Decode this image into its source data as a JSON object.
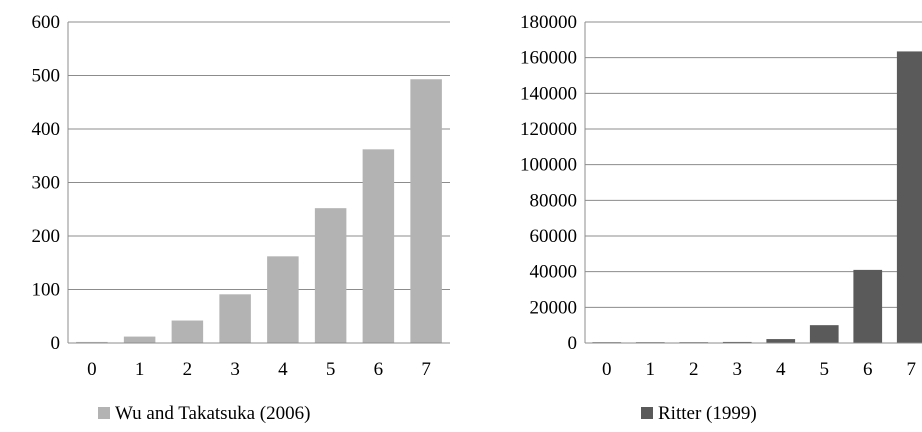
{
  "chart_data": [
    {
      "type": "bar",
      "categories": [
        "0",
        "1",
        "2",
        "3",
        "4",
        "5",
        "6",
        "7"
      ],
      "series": [
        {
          "name": "Wu and Takatsuka (2006)",
          "color": "#b3b3b3",
          "values": [
            2,
            12,
            42,
            91,
            162,
            252,
            362,
            493
          ]
        }
      ],
      "ylim": [
        0,
        600
      ],
      "yticks": [
        0,
        100,
        200,
        300,
        400,
        500,
        600
      ],
      "grid": true,
      "legend_position": "bottom-center"
    },
    {
      "type": "bar",
      "categories": [
        "0",
        "1",
        "2",
        "3",
        "4",
        "5",
        "6",
        "7"
      ],
      "series": [
        {
          "name": "Ritter (1999)",
          "color": "#5a5a5a",
          "values": [
            10,
            200,
            400,
            600,
            2200,
            10000,
            41000,
            163500
          ]
        }
      ],
      "ylim": [
        0,
        180000
      ],
      "yticks": [
        0,
        20000,
        40000,
        60000,
        80000,
        100000,
        120000,
        140000,
        160000,
        180000
      ],
      "grid": true,
      "legend_position": "bottom-center"
    }
  ]
}
